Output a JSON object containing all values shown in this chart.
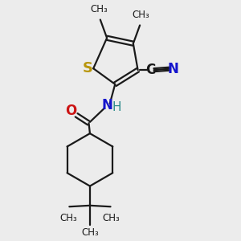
{
  "background_color": "#ececec",
  "bond_color": "#1a1a1a",
  "S_color": "#b8960c",
  "N_color": "#1414cc",
  "NH_color": "#2e8b8b",
  "O_color": "#cc1414",
  "fig_w": 3.0,
  "fig_h": 3.0,
  "dpi": 100,
  "lw": 1.6,
  "xlim": [
    0,
    10
  ],
  "ylim": [
    0,
    10
  ]
}
